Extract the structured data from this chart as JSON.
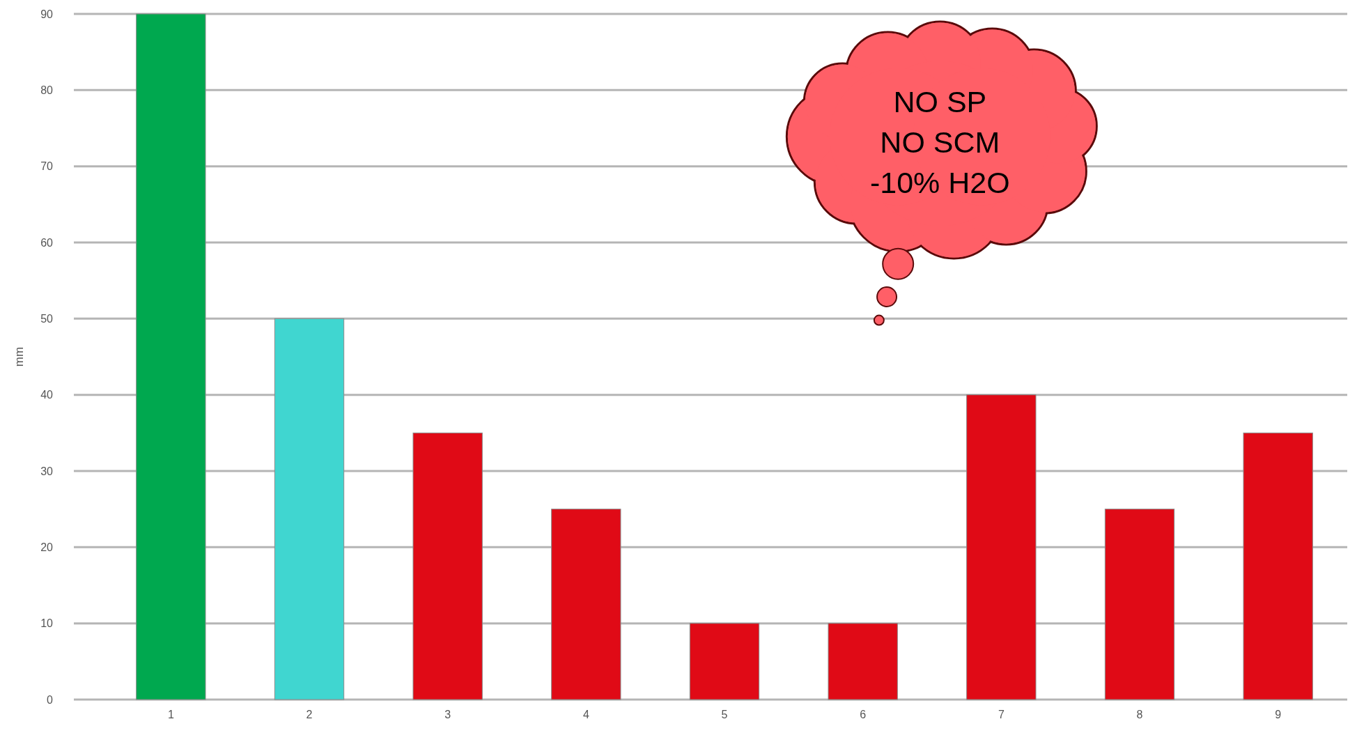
{
  "chart_data": {
    "type": "bar",
    "ylabel": "mm",
    "categories": [
      "1",
      "2",
      "3",
      "4",
      "5",
      "6",
      "7",
      "8",
      "9"
    ],
    "values": [
      90,
      50,
      35,
      25,
      10,
      10,
      40,
      25,
      35
    ],
    "colors": [
      "#00a84f",
      "#40d6d0",
      "#e00a16",
      "#e00a16",
      "#e00a16",
      "#e00a16",
      "#e00a16",
      "#e00a16",
      "#e00a16"
    ],
    "ylim": [
      0,
      90
    ],
    "yticks": [
      0,
      10,
      20,
      30,
      40,
      50,
      60,
      70,
      80,
      90
    ],
    "grid": "y",
    "annotations": [
      "NO SP",
      "NO SCM",
      "-10% H2O"
    ]
  }
}
